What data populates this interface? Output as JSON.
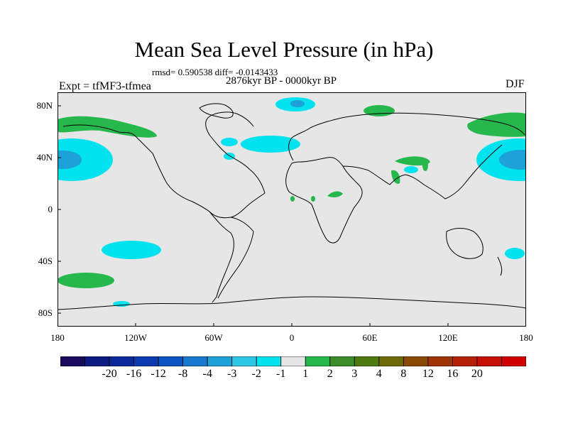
{
  "title": "Mean Sea Level Pressure (in hPa)",
  "stats_line": "rmsd= 0.590538  diff= -0.0143433",
  "period": "2876kyr BP - 0000kyr BP",
  "experiment": "Expt = tfMF3-tfmea",
  "season": "DJF",
  "lat_labels": [
    "80N",
    "40N",
    "0",
    "40S",
    "80S"
  ],
  "lon_labels": [
    "180",
    "120W",
    "60W",
    "0",
    "60E",
    "120E",
    "180"
  ],
  "colorbar": {
    "labels": [
      "-20",
      "-16",
      "-12",
      "-8",
      "-4",
      "-3",
      "-2",
      "-1",
      "1",
      "2",
      "3",
      "4",
      "8",
      "12",
      "16",
      "20"
    ],
    "colors": [
      "#1a0a5e",
      "#0d1a80",
      "#0a2a9a",
      "#0a3cb0",
      "#0a55c0",
      "#1878cc",
      "#1ea0d8",
      "#2cc8e6",
      "#00e2ee",
      "#e6e6e6",
      "#26b84c",
      "#3c8c2a",
      "#4f7a10",
      "#6e6a0a",
      "#8a4a06",
      "#9e3408",
      "#b42008",
      "#c41006",
      "#d00000"
    ]
  },
  "colors": {
    "background": "#e6e6e6",
    "positive_fill": "#26b84c",
    "negative_fill": "#00e2ee",
    "negative_core": "#1ea0d8"
  }
}
